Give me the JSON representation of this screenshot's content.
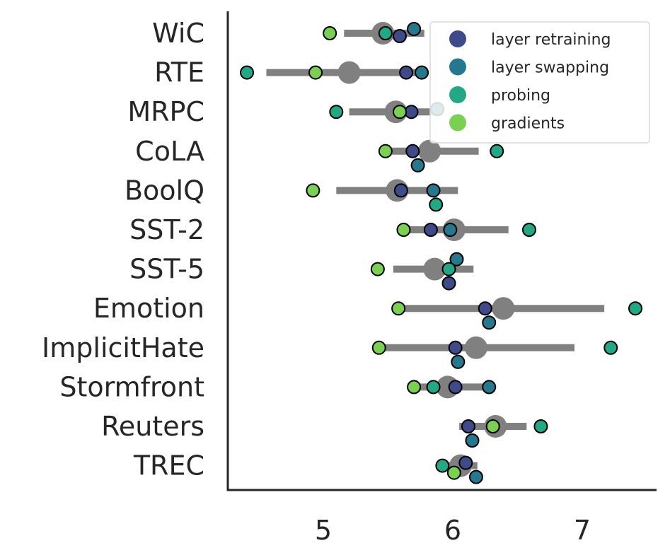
{
  "chart_data": {
    "type": "scatter",
    "title": "",
    "xlabel": "",
    "ylabel": "",
    "xlim": [
      4.25,
      7.6
    ],
    "xticks": [
      "5",
      "6",
      "7"
    ],
    "grid": false,
    "legend_position": "top-right",
    "categories": [
      "WiC",
      "RTE",
      "MRPC",
      "CoLA",
      "BoolQ",
      "SST-2",
      "SST-5",
      "Emotion",
      "ImplicitHate",
      "Stormfront",
      "Reuters",
      "TREC"
    ],
    "summary": {
      "color": "#808080",
      "means": [
        5.46,
        5.2,
        5.56,
        5.82,
        5.57,
        6.01,
        5.86,
        6.39,
        6.18,
        5.96,
        6.33,
        6.06
      ],
      "ranges": [
        [
          5.16,
          5.78
        ],
        [
          4.56,
          5.78
        ],
        [
          5.2,
          5.92
        ],
        [
          5.49,
          6.2
        ],
        [
          5.1,
          6.04
        ],
        [
          5.62,
          6.43
        ],
        [
          5.54,
          6.16
        ],
        [
          5.61,
          7.17
        ],
        [
          5.45,
          6.94
        ],
        [
          5.71,
          6.3
        ],
        [
          6.05,
          6.57
        ],
        [
          5.93,
          6.19
        ]
      ]
    },
    "series": [
      {
        "name": "layer retraining",
        "color": "#3e4a89",
        "values": [
          5.59,
          5.64,
          5.68,
          5.69,
          5.6,
          5.83,
          5.97,
          6.25,
          6.02,
          6.02,
          6.12,
          6.1
        ]
      },
      {
        "name": "layer swapping",
        "color": "#26788e",
        "values": [
          5.7,
          5.76,
          5.88,
          5.73,
          5.85,
          5.98,
          6.03,
          6.28,
          6.04,
          6.28,
          6.15,
          6.18
        ]
      },
      {
        "name": "probing",
        "color": "#22a884",
        "values": [
          5.48,
          4.41,
          5.1,
          6.34,
          5.87,
          6.59,
          5.97,
          7.41,
          7.22,
          5.85,
          6.68,
          5.92
        ]
      },
      {
        "name": "gradients",
        "color": "#7ad151",
        "values": [
          5.05,
          4.94,
          5.59,
          5.48,
          4.92,
          5.62,
          5.42,
          5.58,
          5.43,
          5.7,
          6.31,
          6.01
        ]
      }
    ],
    "offsets": [
      [
        4,
        -6,
        0,
        0
      ],
      [
        0,
        0,
        0,
        0
      ],
      [
        0,
        -4,
        0,
        0
      ],
      [
        0,
        20,
        0,
        0
      ],
      [
        0,
        0,
        20,
        0
      ],
      [
        0,
        0,
        0,
        0
      ],
      [
        20,
        -14,
        0,
        0
      ],
      [
        0,
        20,
        0,
        0
      ],
      [
        0,
        20,
        0,
        0
      ],
      [
        0,
        0,
        0,
        0
      ],
      [
        0,
        20,
        0,
        0
      ],
      [
        -4,
        16,
        0,
        10
      ]
    ]
  }
}
